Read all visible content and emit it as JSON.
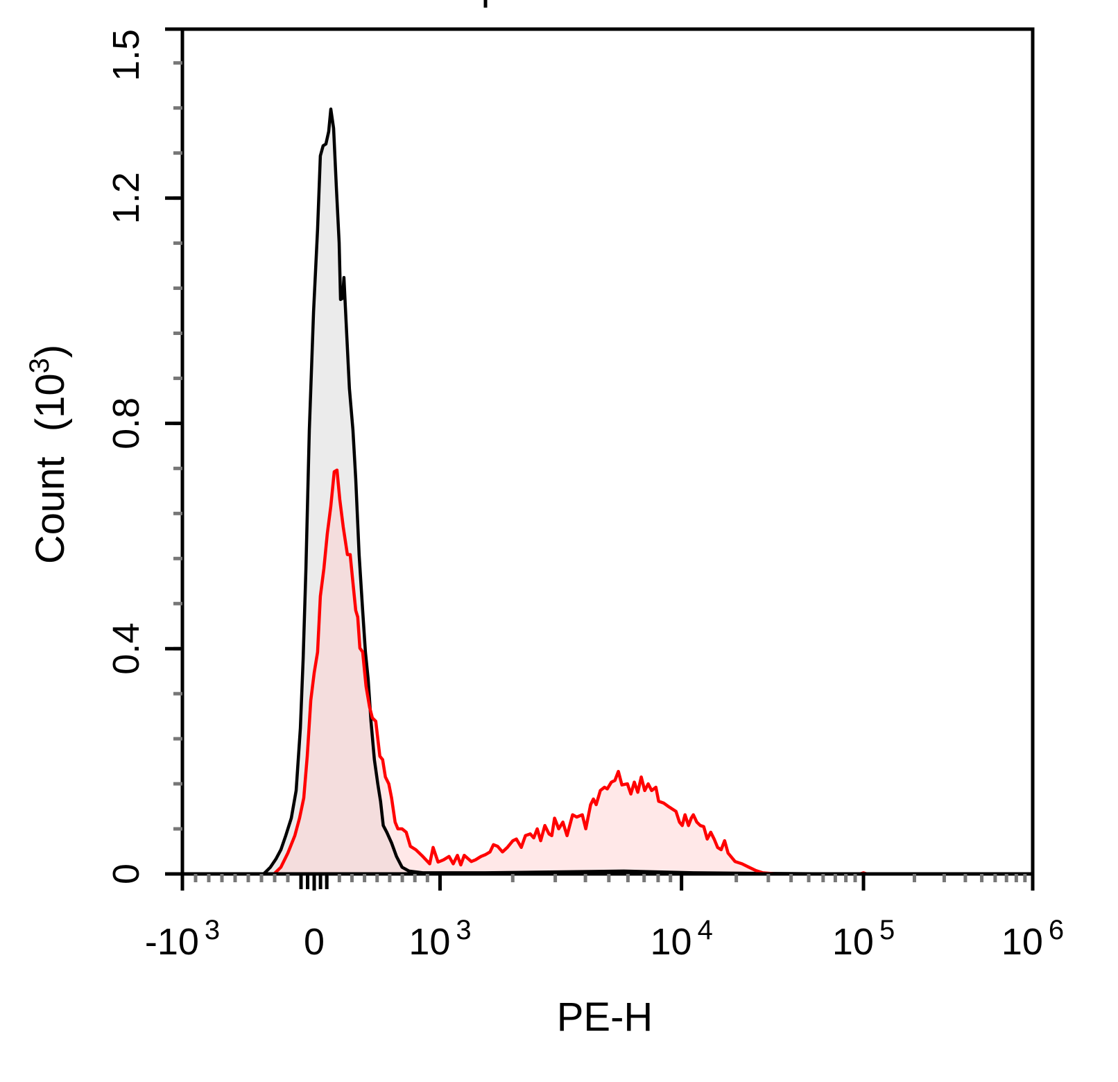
{
  "chart_data": {
    "type": "area",
    "title": "",
    "xlabel": "PE-H",
    "ylabel": {
      "text": "Count",
      "unit_base": "(10",
      "unit_exp": "3",
      "unit_close": ")"
    },
    "x_scale": "biexponential",
    "xlim": [
      -1000,
      1000000
    ],
    "ylim": [
      0,
      1.5
    ],
    "x_ticks": [
      {
        "value": -1000,
        "base": "-10",
        "exp": "3"
      },
      {
        "value": 0,
        "base": "0",
        "exp": ""
      },
      {
        "value": 1000,
        "base": "10",
        "exp": "3"
      },
      {
        "value": 10000,
        "base": "10",
        "exp": "4"
      },
      {
        "value": 100000,
        "base": "10",
        "exp": "5"
      },
      {
        "value": 1000000,
        "base": "10",
        "exp": "6"
      }
    ],
    "y_ticks": [
      {
        "value": 0,
        "label": "0"
      },
      {
        "value": 0.4,
        "label": "0.4"
      },
      {
        "value": 0.8,
        "label": "0.8"
      },
      {
        "value": 1.2,
        "label": "1.2"
      },
      {
        "value": 1.5,
        "label": "1.5"
      }
    ],
    "grid": false,
    "series": [
      {
        "color": "#000000",
        "fill": "#ebebeb",
        "x": [
          -384,
          -332,
          -289,
          -253,
          -216,
          -174,
          -137,
          -105,
          -84,
          -63,
          -37,
          -5,
          27,
          49,
          71,
          93,
          115,
          132,
          154,
          176,
          198,
          209,
          225,
          236,
          258,
          280,
          308,
          330,
          357,
          385,
          407,
          429,
          451,
          478,
          505,
          527,
          549,
          577,
          615,
          654,
          698,
          753,
          863,
          1538,
          5768,
          11610,
          27990,
          67300,
          918000
        ],
        "y": [
          0,
          0.012,
          0.027,
          0.043,
          0.068,
          0.099,
          0.148,
          0.259,
          0.382,
          0.542,
          0.788,
          0.998,
          1.145,
          1.275,
          1.293,
          1.296,
          1.318,
          1.358,
          1.324,
          1.219,
          1.121,
          1.02,
          1.022,
          1.059,
          0.961,
          0.862,
          0.788,
          0.702,
          0.567,
          0.468,
          0.394,
          0.345,
          0.271,
          0.203,
          0.16,
          0.129,
          0.086,
          0.074,
          0.055,
          0.031,
          0.012,
          0.005,
          0.002,
          0.002,
          0.005,
          0.002,
          0.001,
          0,
          0
        ]
      },
      {
        "color": "#ff0000",
        "fill": "#ffcccc",
        "x": [
          -305,
          -253,
          -200,
          -147,
          -111,
          -79,
          -53,
          -26,
          0,
          27,
          49,
          77,
          104,
          132,
          159,
          181,
          203,
          231,
          264,
          286,
          308,
          330,
          346,
          363,
          385,
          412,
          440,
          462,
          489,
          522,
          544,
          566,
          593,
          615,
          643,
          665,
          698,
          731,
          764,
          808,
          863,
          918,
          945,
          984,
          1034,
          1090,
          1134,
          1180,
          1219,
          1260,
          1347,
          1402,
          1477,
          1537,
          1610,
          1664,
          1732,
          1814,
          1900,
          2003,
          2071,
          2169,
          2257,
          2364,
          2444,
          2526,
          2611,
          2716,
          2826,
          2902,
          2980,
          3100,
          3226,
          3357,
          3539,
          3683,
          3883,
          4012,
          4204,
          4316,
          4432,
          4611,
          4797,
          4926,
          5126,
          5299,
          5477,
          5662,
          5970,
          6169,
          6377,
          6592,
          6813,
          7041,
          7278,
          7521,
          7831,
          8040,
          8420,
          8878,
          9485,
          9804,
          10088,
          10450,
          10918,
          11307,
          11610,
          12130,
          12680,
          13250,
          13840,
          14470,
          15110,
          15790,
          16510,
          17250,
          18020,
          19680,
          21480,
          23450,
          25620,
          27970,
          33340,
          95700,
          100000,
          104800,
          918000
        ],
        "y": [
          0,
          0.012,
          0.037,
          0.068,
          0.099,
          0.135,
          0.209,
          0.308,
          0.357,
          0.394,
          0.493,
          0.542,
          0.604,
          0.653,
          0.714,
          0.717,
          0.665,
          0.616,
          0.567,
          0.567,
          0.517,
          0.468,
          0.456,
          0.401,
          0.394,
          0.333,
          0.296,
          0.277,
          0.271,
          0.209,
          0.203,
          0.172,
          0.16,
          0.135,
          0.092,
          0.08,
          0.08,
          0.074,
          0.049,
          0.043,
          0.031,
          0.018,
          0.047,
          0.021,
          0.025,
          0.031,
          0.018,
          0.033,
          0.016,
          0.033,
          0.022,
          0.025,
          0.031,
          0.034,
          0.039,
          0.052,
          0.049,
          0.039,
          0.047,
          0.059,
          0.062,
          0.047,
          0.068,
          0.071,
          0.064,
          0.08,
          0.059,
          0.086,
          0.071,
          0.068,
          0.099,
          0.08,
          0.092,
          0.068,
          0.105,
          0.101,
          0.105,
          0.08,
          0.123,
          0.133,
          0.123,
          0.148,
          0.154,
          0.151,
          0.163,
          0.166,
          0.182,
          0.158,
          0.16,
          0.142,
          0.163,
          0.145,
          0.172,
          0.148,
          0.16,
          0.148,
          0.154,
          0.129,
          0.126,
          0.119,
          0.111,
          0.092,
          0.086,
          0.105,
          0.086,
          0.099,
          0.105,
          0.092,
          0.086,
          0.084,
          0.062,
          0.074,
          0.062,
          0.047,
          0.043,
          0.059,
          0.037,
          0.022,
          0.018,
          0.012,
          0.006,
          0.002,
          0,
          0,
          0.002,
          0,
          0
        ]
      }
    ]
  }
}
